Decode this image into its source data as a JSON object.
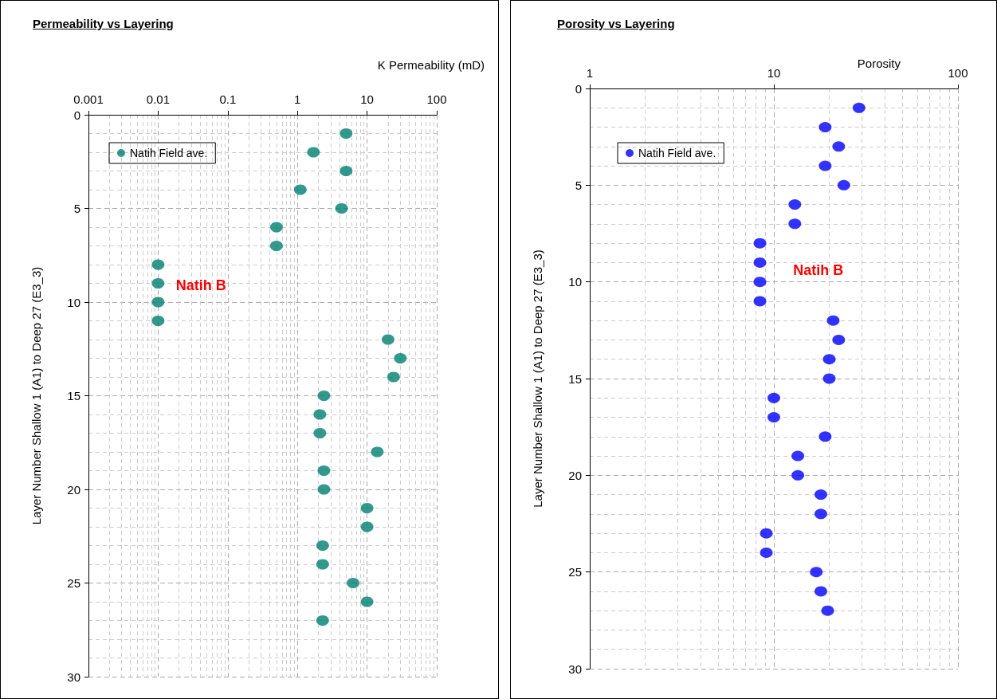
{
  "chart_data": [
    {
      "type": "scatter",
      "title": "Permeability  vs Layering",
      "xlabel": "K Permeability (mD)",
      "ylabel": "Layer Number Shallow 1 (A1) to Deep 27 (E3_3)",
      "annotations": [
        "Natih B"
      ],
      "series": [
        {
          "name": "Natih Field ave.",
          "color": "#008070",
          "x": [
            5,
            1.7,
            5,
            1.1,
            4.3,
            0.5,
            0.5,
            0.01,
            0.01,
            0.01,
            0.01,
            20,
            30,
            24,
            2.4,
            2.1,
            2.1,
            14,
            2.4,
            2.4,
            10,
            10,
            2.3,
            2.3,
            6.3,
            10,
            2.3
          ],
          "values": [
            1,
            2,
            3,
            4,
            5,
            6,
            7,
            8,
            9,
            10,
            11,
            12,
            13,
            14,
            15,
            16,
            17,
            18,
            19,
            20,
            21,
            22,
            23,
            24,
            25,
            26,
            27
          ]
        }
      ],
      "log": "x",
      "xlim": [
        0.001,
        100
      ],
      "xticks": [
        0.001,
        0.01,
        0.1,
        1,
        10,
        100
      ],
      "ylim": [
        30,
        0
      ],
      "yticks": [
        0,
        5,
        10,
        15,
        20,
        25,
        30
      ],
      "grid": true,
      "legend": "top left",
      "marker": "circle"
    },
    {
      "type": "scatter",
      "title": "Porosity vs Layering",
      "xlabel": "Porosity",
      "ylabel": "Layer Number Shallow 1 (A1) to Deep 27 (E3_3)",
      "annotations": [
        "Natih B"
      ],
      "series": [
        {
          "name": "Natih Field ave.",
          "color": "#0000ff",
          "x": [
            29,
            19,
            22.5,
            19,
            24,
            13,
            13,
            8.4,
            8.4,
            8.4,
            8.4,
            21,
            22.5,
            20,
            20,
            10,
            10,
            19,
            13.5,
            13.5,
            18,
            18,
            9.1,
            9.1,
            17,
            18,
            19.6
          ],
          "values": [
            1,
            2,
            3,
            4,
            5,
            6,
            7,
            8,
            9,
            10,
            11,
            12,
            13,
            14,
            15,
            16,
            17,
            18,
            19,
            20,
            21,
            22,
            23,
            24,
            25,
            26,
            27
          ]
        }
      ],
      "log": "x",
      "xlim": [
        1,
        100
      ],
      "xticks": [
        1,
        10,
        100
      ],
      "ylim": [
        30,
        0
      ],
      "yticks": [
        0,
        5,
        10,
        15,
        20,
        25,
        30
      ],
      "grid": true,
      "legend": "top left",
      "marker": "circle"
    }
  ]
}
